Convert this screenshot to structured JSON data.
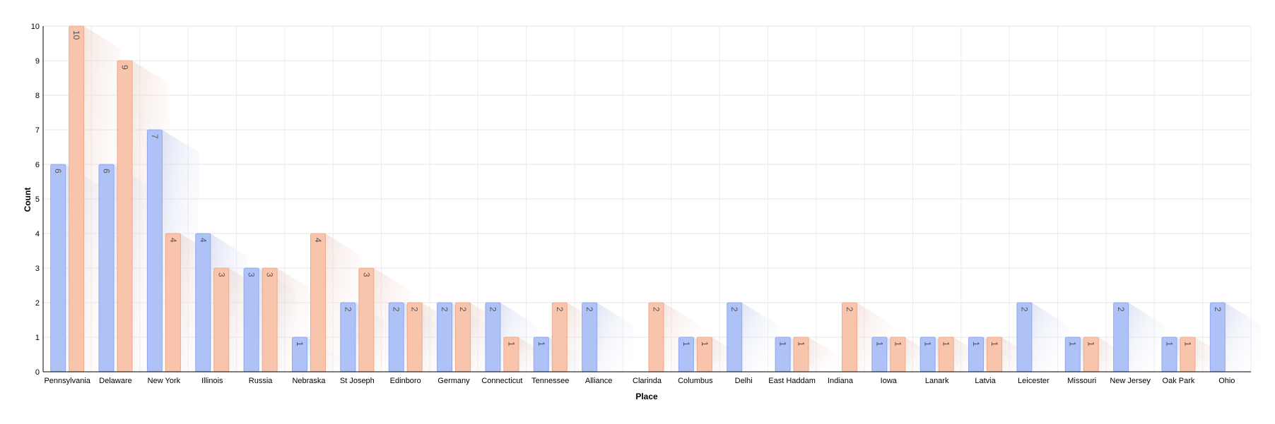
{
  "chart_data": {
    "type": "bar",
    "xlabel": "Place",
    "ylabel": "Count",
    "ylim": [
      0,
      10
    ],
    "yticks": [
      0,
      1,
      2,
      3,
      4,
      5,
      6,
      7,
      8,
      9,
      10
    ],
    "grid": true,
    "categories": [
      "Pennsylvania",
      "Delaware",
      "New York",
      "Illinois",
      "Russia",
      "Nebraska",
      "St Joseph",
      "Edinboro",
      "Germany",
      "Connecticut",
      "Tennessee",
      "Alliance",
      "Clarinda",
      "Columbus",
      "Delhi",
      "East Haddam",
      "Indiana",
      "Iowa",
      "Lanark",
      "Latvia",
      "Leicester",
      "Missouri",
      "New Jersey",
      "Oak Park",
      "Ohio"
    ],
    "series": [
      {
        "color": "#aec2f7",
        "values": [
          6,
          6,
          7,
          4,
          3,
          1,
          2,
          2,
          2,
          2,
          1,
          2,
          0,
          1,
          2,
          1,
          0,
          1,
          1,
          1,
          2,
          1,
          2,
          1,
          2
        ]
      },
      {
        "color": "#f9c4ac",
        "values": [
          10,
          9,
          4,
          3,
          3,
          4,
          3,
          2,
          2,
          1,
          2,
          0,
          2,
          1,
          0,
          1,
          2,
          1,
          1,
          1,
          0,
          1,
          0,
          1,
          0
        ]
      }
    ]
  }
}
